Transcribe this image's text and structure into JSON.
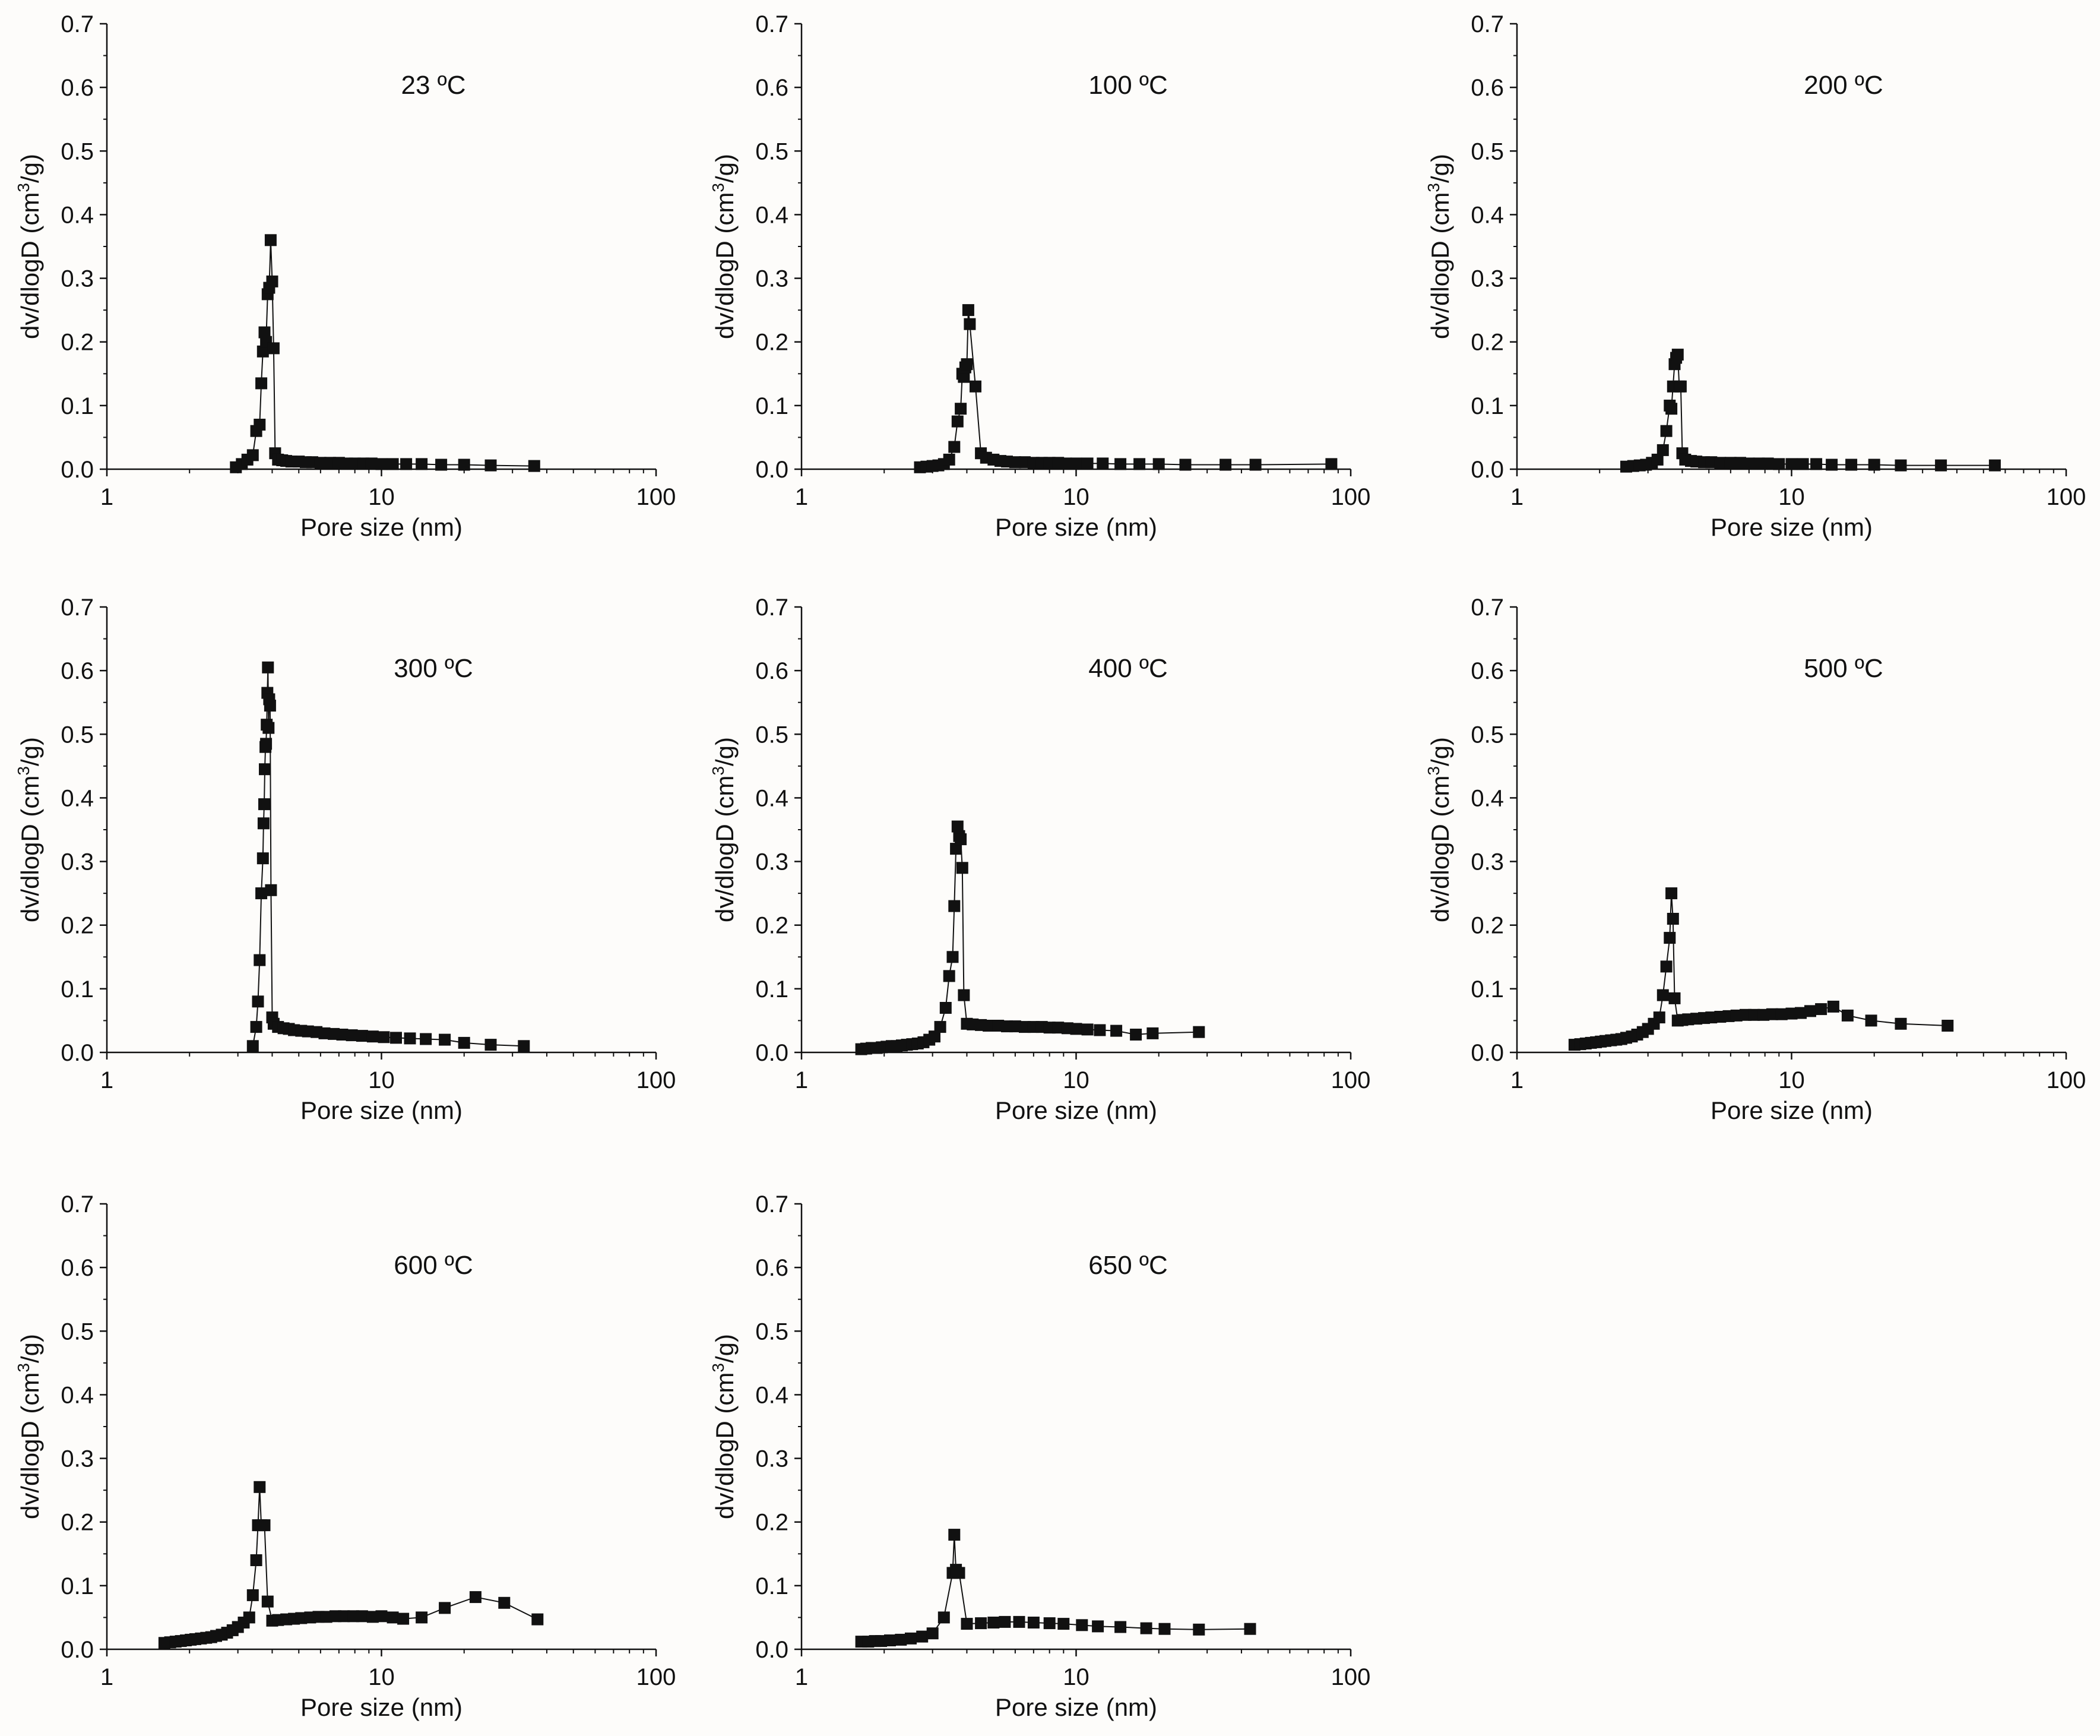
{
  "chart_data": [
    {
      "type": "scatter",
      "title": "23 ºC",
      "xlabel": "Pore size (nm)",
      "ylabel_prefix": "dv/dlogD (cm",
      "ylabel_sup": "3",
      "ylabel_suffix": "/g)",
      "xscale": "log",
      "xlim": [
        1,
        100
      ],
      "ylim": [
        0,
        0.7
      ],
      "xticks": [
        1,
        10,
        100
      ],
      "xtick_labels": [
        "1",
        "10",
        "100"
      ],
      "yticks": [
        0,
        0.1,
        0.2,
        0.3,
        0.4,
        0.5,
        0.6,
        0.7
      ],
      "ytick_labels": [
        "0.0",
        "0.1",
        "0.2",
        "0.3",
        "0.4",
        "0.5",
        "0.6",
        "0.7"
      ],
      "marker": "square",
      "connected": true,
      "x": [
        2.95,
        3.1,
        3.25,
        3.4,
        3.5,
        3.6,
        3.65,
        3.7,
        3.75,
        3.8,
        3.85,
        3.9,
        3.95,
        4.0,
        4.05,
        4.1,
        4.2,
        4.35,
        4.5,
        4.7,
        5.0,
        5.3,
        5.6,
        6.0,
        6.5,
        7.0,
        7.5,
        8.0,
        8.6,
        9.2,
        10.0,
        11.0,
        12.3,
        14.0,
        16.5,
        20.0,
        25.0,
        36.0
      ],
      "y": [
        0.003,
        0.008,
        0.015,
        0.022,
        0.06,
        0.07,
        0.135,
        0.185,
        0.215,
        0.2,
        0.275,
        0.285,
        0.36,
        0.295,
        0.19,
        0.025,
        0.015,
        0.014,
        0.013,
        0.012,
        0.012,
        0.011,
        0.011,
        0.01,
        0.01,
        0.01,
        0.009,
        0.009,
        0.009,
        0.009,
        0.008,
        0.008,
        0.008,
        0.008,
        0.007,
        0.007,
        0.006,
        0.005
      ]
    },
    {
      "type": "scatter",
      "title": "100 ºC",
      "xlabel": "Pore size (nm)",
      "ylabel_prefix": "dv/dlogD (cm",
      "ylabel_sup": "3",
      "ylabel_suffix": "/g)",
      "xscale": "log",
      "xlim": [
        1,
        100
      ],
      "ylim": [
        0,
        0.7
      ],
      "xticks": [
        1,
        10,
        100
      ],
      "xtick_labels": [
        "1",
        "10",
        "100"
      ],
      "yticks": [
        0,
        0.1,
        0.2,
        0.3,
        0.4,
        0.5,
        0.6,
        0.7
      ],
      "ytick_labels": [
        "0.0",
        "0.1",
        "0.2",
        "0.3",
        "0.4",
        "0.5",
        "0.6",
        "0.7"
      ],
      "marker": "square",
      "connected": true,
      "x": [
        2.7,
        2.85,
        3.0,
        3.15,
        3.3,
        3.45,
        3.6,
        3.7,
        3.8,
        3.85,
        3.9,
        3.95,
        4.0,
        4.05,
        4.1,
        4.3,
        4.5,
        4.7,
        5.0,
        5.3,
        5.6,
        6.0,
        6.5,
        7.0,
        7.5,
        8.0,
        8.6,
        9.2,
        10.0,
        11.0,
        12.5,
        14.5,
        17.0,
        20.0,
        25.0,
        35.0,
        45.0,
        85.0
      ],
      "y": [
        0.003,
        0.004,
        0.005,
        0.006,
        0.008,
        0.015,
        0.035,
        0.075,
        0.095,
        0.15,
        0.145,
        0.16,
        0.165,
        0.25,
        0.228,
        0.13,
        0.025,
        0.018,
        0.015,
        0.013,
        0.012,
        0.011,
        0.011,
        0.01,
        0.01,
        0.01,
        0.01,
        0.009,
        0.009,
        0.009,
        0.009,
        0.008,
        0.008,
        0.008,
        0.007,
        0.007,
        0.007,
        0.008
      ]
    },
    {
      "type": "scatter",
      "title": "200 ºC",
      "xlabel": "Pore size (nm)",
      "ylabel_prefix": "dv/dlogD (cm",
      "ylabel_sup": "3",
      "ylabel_suffix": "/g)",
      "xscale": "log",
      "xlim": [
        1,
        100
      ],
      "ylim": [
        0,
        0.7
      ],
      "xticks": [
        1,
        10,
        100
      ],
      "xtick_labels": [
        "1",
        "10",
        "100"
      ],
      "yticks": [
        0,
        0.1,
        0.2,
        0.3,
        0.4,
        0.5,
        0.6,
        0.7
      ],
      "ytick_labels": [
        "0.0",
        "0.1",
        "0.2",
        "0.3",
        "0.4",
        "0.5",
        "0.6",
        "0.7"
      ],
      "marker": "square",
      "connected": true,
      "x": [
        2.5,
        2.65,
        2.8,
        2.95,
        3.1,
        3.25,
        3.4,
        3.5,
        3.6,
        3.65,
        3.7,
        3.75,
        3.8,
        3.85,
        3.9,
        3.95,
        4.0,
        4.1,
        4.3,
        4.5,
        4.8,
        5.1,
        5.5,
        6.0,
        6.5,
        7.0,
        7.6,
        8.2,
        9.0,
        10.0,
        11.0,
        12.3,
        14.0,
        16.5,
        20.0,
        25.0,
        35.0,
        55.0
      ],
      "y": [
        0.004,
        0.005,
        0.006,
        0.007,
        0.01,
        0.015,
        0.03,
        0.06,
        0.1,
        0.095,
        0.13,
        0.165,
        0.175,
        0.18,
        0.13,
        0.13,
        0.025,
        0.015,
        0.013,
        0.012,
        0.011,
        0.011,
        0.01,
        0.01,
        0.01,
        0.009,
        0.009,
        0.009,
        0.008,
        0.008,
        0.008,
        0.008,
        0.007,
        0.007,
        0.007,
        0.006,
        0.006,
        0.006
      ]
    },
    {
      "type": "scatter",
      "title": "300 ºC",
      "xlabel": "Pore size (nm)",
      "ylabel_prefix": "dv/dlogD (cm",
      "ylabel_sup": "3",
      "ylabel_suffix": "/g)",
      "xscale": "log",
      "xlim": [
        1,
        100
      ],
      "ylim": [
        0,
        0.7
      ],
      "xticks": [
        1,
        10,
        100
      ],
      "xtick_labels": [
        "1",
        "10",
        "100"
      ],
      "yticks": [
        0,
        0.1,
        0.2,
        0.3,
        0.4,
        0.5,
        0.6,
        0.7
      ],
      "ytick_labels": [
        "0.0",
        "0.1",
        "0.2",
        "0.3",
        "0.4",
        "0.5",
        "0.6",
        "0.7"
      ],
      "marker": "square",
      "connected": true,
      "x": [
        3.4,
        3.5,
        3.55,
        3.6,
        3.65,
        3.7,
        3.72,
        3.74,
        3.76,
        3.78,
        3.8,
        3.82,
        3.84,
        3.86,
        3.88,
        3.9,
        3.93,
        3.96,
        4.0,
        4.05,
        4.2,
        4.4,
        4.6,
        4.8,
        5.1,
        5.4,
        5.8,
        6.2,
        6.7,
        7.2,
        7.8,
        8.5,
        9.3,
        10.2,
        11.3,
        12.7,
        14.5,
        17.0,
        20.0,
        25.0,
        33.0
      ],
      "y": [
        0.01,
        0.04,
        0.08,
        0.145,
        0.25,
        0.305,
        0.36,
        0.39,
        0.445,
        0.48,
        0.485,
        0.515,
        0.565,
        0.605,
        0.51,
        0.555,
        0.545,
        0.255,
        0.055,
        0.045,
        0.04,
        0.038,
        0.037,
        0.035,
        0.034,
        0.033,
        0.032,
        0.03,
        0.029,
        0.028,
        0.027,
        0.026,
        0.025,
        0.024,
        0.023,
        0.022,
        0.021,
        0.02,
        0.015,
        0.012,
        0.01
      ]
    },
    {
      "type": "scatter",
      "title": "400 ºC",
      "xlabel": "Pore size (nm)",
      "ylabel_prefix": "dv/dlogD (cm",
      "ylabel_sup": "3",
      "ylabel_suffix": "/g)",
      "xscale": "log",
      "xlim": [
        1,
        100
      ],
      "ylim": [
        0,
        0.7
      ],
      "xticks": [
        1,
        10,
        100
      ],
      "xtick_labels": [
        "1",
        "10",
        "100"
      ],
      "yticks": [
        0,
        0.1,
        0.2,
        0.3,
        0.4,
        0.5,
        0.6,
        0.7
      ],
      "ytick_labels": [
        "0.0",
        "0.1",
        "0.2",
        "0.3",
        "0.4",
        "0.5",
        "0.6",
        "0.7"
      ],
      "marker": "square",
      "connected": true,
      "x": [
        1.65,
        1.72,
        1.8,
        1.88,
        1.96,
        2.04,
        2.13,
        2.22,
        2.32,
        2.42,
        2.53,
        2.65,
        2.78,
        2.92,
        3.05,
        3.2,
        3.35,
        3.45,
        3.55,
        3.6,
        3.65,
        3.7,
        3.75,
        3.8,
        3.85,
        3.9,
        4.0,
        4.2,
        4.5,
        4.8,
        5.2,
        5.6,
        6.0,
        6.5,
        7.0,
        7.5,
        8.0,
        8.6,
        9.3,
        10.0,
        11.0,
        12.2,
        14.0,
        16.5,
        19.0,
        28.0
      ],
      "y": [
        0.005,
        0.006,
        0.007,
        0.007,
        0.008,
        0.009,
        0.01,
        0.01,
        0.011,
        0.012,
        0.013,
        0.014,
        0.016,
        0.02,
        0.025,
        0.04,
        0.07,
        0.12,
        0.15,
        0.23,
        0.32,
        0.355,
        0.34,
        0.335,
        0.29,
        0.09,
        0.045,
        0.044,
        0.043,
        0.042,
        0.042,
        0.041,
        0.041,
        0.04,
        0.04,
        0.04,
        0.039,
        0.039,
        0.038,
        0.037,
        0.036,
        0.035,
        0.034,
        0.028,
        0.03,
        0.032
      ]
    },
    {
      "type": "scatter",
      "title": "500 ºC",
      "xlabel": "Pore size (nm)",
      "ylabel_prefix": "dv/dlogD (cm",
      "ylabel_sup": "3",
      "ylabel_suffix": "/g)",
      "xscale": "log",
      "xlim": [
        1,
        100
      ],
      "ylim": [
        0,
        0.7
      ],
      "xticks": [
        1,
        10,
        100
      ],
      "xtick_labels": [
        "1",
        "10",
        "100"
      ],
      "yticks": [
        0,
        0.1,
        0.2,
        0.3,
        0.4,
        0.5,
        0.6,
        0.7
      ],
      "ytick_labels": [
        "0.0",
        "0.1",
        "0.2",
        "0.3",
        "0.4",
        "0.5",
        "0.6",
        "0.7"
      ],
      "marker": "square",
      "connected": true,
      "x": [
        1.62,
        1.7,
        1.78,
        1.86,
        1.94,
        2.02,
        2.1,
        2.2,
        2.3,
        2.4,
        2.5,
        2.62,
        2.74,
        2.87,
        3.0,
        3.15,
        3.3,
        3.4,
        3.5,
        3.6,
        3.65,
        3.7,
        3.75,
        3.85,
        4.0,
        4.2,
        4.5,
        4.8,
        5.1,
        5.5,
        5.9,
        6.3,
        6.8,
        7.3,
        7.9,
        8.5,
        9.2,
        10.0,
        10.8,
        11.7,
        12.8,
        14.2,
        16.0,
        19.5,
        25.0,
        37.0
      ],
      "y": [
        0.012,
        0.013,
        0.014,
        0.015,
        0.016,
        0.017,
        0.018,
        0.019,
        0.02,
        0.021,
        0.023,
        0.025,
        0.028,
        0.032,
        0.037,
        0.045,
        0.055,
        0.09,
        0.135,
        0.18,
        0.25,
        0.21,
        0.085,
        0.05,
        0.051,
        0.052,
        0.053,
        0.054,
        0.055,
        0.056,
        0.057,
        0.058,
        0.059,
        0.059,
        0.059,
        0.06,
        0.06,
        0.061,
        0.062,
        0.065,
        0.068,
        0.072,
        0.058,
        0.05,
        0.045,
        0.042
      ]
    },
    {
      "type": "scatter",
      "title": "600 ºC",
      "xlabel": "Pore size (nm)",
      "ylabel_prefix": "dv/dlogD (cm",
      "ylabel_sup": "3",
      "ylabel_suffix": "/g)",
      "xscale": "log",
      "xlim": [
        1,
        100
      ],
      "ylim": [
        0,
        0.7
      ],
      "xticks": [
        1,
        10,
        100
      ],
      "xtick_labels": [
        "1",
        "10",
        "100"
      ],
      "yticks": [
        0,
        0.1,
        0.2,
        0.3,
        0.4,
        0.5,
        0.6,
        0.7
      ],
      "ytick_labels": [
        "0.0",
        "0.1",
        "0.2",
        "0.3",
        "0.4",
        "0.5",
        "0.6",
        "0.7"
      ],
      "marker": "square",
      "connected": true,
      "x": [
        1.62,
        1.7,
        1.78,
        1.86,
        1.94,
        2.02,
        2.1,
        2.2,
        2.3,
        2.4,
        2.5,
        2.62,
        2.74,
        2.87,
        3.0,
        3.15,
        3.3,
        3.4,
        3.5,
        3.55,
        3.6,
        3.65,
        3.75,
        3.85,
        4.0,
        4.2,
        4.5,
        4.8,
        5.1,
        5.5,
        5.9,
        6.3,
        6.8,
        7.3,
        7.9,
        8.5,
        9.3,
        10.0,
        11.0,
        12.0,
        14.0,
        17.0,
        22.0,
        28.0,
        37.0
      ],
      "y": [
        0.01,
        0.011,
        0.012,
        0.013,
        0.014,
        0.015,
        0.016,
        0.017,
        0.018,
        0.019,
        0.021,
        0.023,
        0.026,
        0.03,
        0.035,
        0.042,
        0.05,
        0.085,
        0.14,
        0.195,
        0.255,
        0.195,
        0.195,
        0.075,
        0.045,
        0.046,
        0.047,
        0.048,
        0.049,
        0.05,
        0.051,
        0.051,
        0.052,
        0.052,
        0.052,
        0.052,
        0.051,
        0.052,
        0.05,
        0.048,
        0.05,
        0.065,
        0.082,
        0.073,
        0.047
      ]
    },
    {
      "type": "scatter",
      "title": "650 ºC",
      "xlabel": "Pore size (nm)",
      "ylabel_prefix": "dv/dlogD (cm",
      "ylabel_sup": "3",
      "ylabel_suffix": "/g)",
      "xscale": "log",
      "xlim": [
        1,
        100
      ],
      "ylim": [
        0,
        0.7
      ],
      "xticks": [
        1,
        10,
        100
      ],
      "xtick_labels": [
        "1",
        "10",
        "100"
      ],
      "yticks": [
        0,
        0.1,
        0.2,
        0.3,
        0.4,
        0.5,
        0.6,
        0.7
      ],
      "ytick_labels": [
        "0.0",
        "0.1",
        "0.2",
        "0.3",
        "0.4",
        "0.5",
        "0.6",
        "0.7"
      ],
      "marker": "square",
      "connected": true,
      "x": [
        1.65,
        1.75,
        1.85,
        1.95,
        2.1,
        2.3,
        2.5,
        2.75,
        3.0,
        3.3,
        3.55,
        3.6,
        3.65,
        3.75,
        4.0,
        4.5,
        5.0,
        5.5,
        6.2,
        7.0,
        8.0,
        9.0,
        10.5,
        12.0,
        14.5,
        18.0,
        21.0,
        28.0,
        43.0
      ],
      "y": [
        0.012,
        0.012,
        0.013,
        0.013,
        0.014,
        0.015,
        0.017,
        0.02,
        0.025,
        0.05,
        0.12,
        0.18,
        0.125,
        0.12,
        0.04,
        0.041,
        0.042,
        0.043,
        0.043,
        0.042,
        0.041,
        0.04,
        0.038,
        0.036,
        0.035,
        0.033,
        0.032,
        0.031,
        0.032
      ]
    }
  ]
}
